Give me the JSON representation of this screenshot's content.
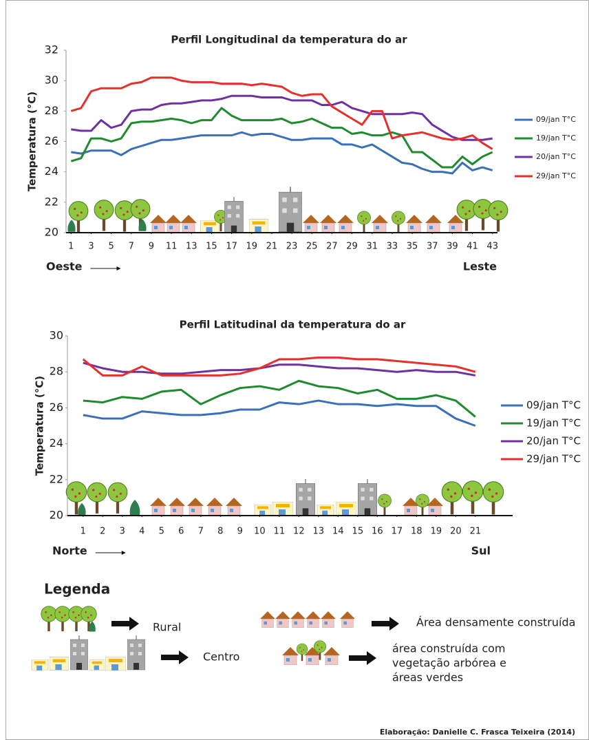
{
  "chart_data": [
    {
      "type": "line",
      "title": "Perfil Longitudinal da temperatura do ar",
      "y_label": "Temperatura (°C)",
      "left_label": "Oeste",
      "right_label": "Leste",
      "legend": "right",
      "x": [
        1,
        2,
        3,
        4,
        5,
        6,
        7,
        8,
        9,
        10,
        11,
        12,
        13,
        14,
        15,
        16,
        17,
        18,
        19,
        20,
        21,
        22,
        23,
        24,
        25,
        26,
        27,
        28,
        29,
        30,
        31,
        32,
        33,
        34,
        35,
        36,
        37,
        38,
        39,
        40,
        41,
        42,
        43
      ],
      "xlim": [
        0.5,
        43.5
      ],
      "xticks": [
        1,
        3,
        5,
        7,
        9,
        11,
        13,
        15,
        17,
        19,
        21,
        23,
        25,
        27,
        29,
        31,
        33,
        35,
        37,
        39,
        41,
        43
      ],
      "ylim": [
        20,
        32
      ],
      "yticks": [
        20,
        22,
        24,
        26,
        28,
        30,
        32
      ],
      "series": [
        {
          "name": "09/jan T°C",
          "color": "#3a6fba",
          "values": [
            25.3,
            25.2,
            25.4,
            25.4,
            25.4,
            25.1,
            25.5,
            25.7,
            25.9,
            26.1,
            26.1,
            26.2,
            26.3,
            26.4,
            26.4,
            26.4,
            26.4,
            26.6,
            26.4,
            26.5,
            26.5,
            26.3,
            26.1,
            26.1,
            26.2,
            26.2,
            26.2,
            25.8,
            25.8,
            25.6,
            25.8,
            25.4,
            25.0,
            24.6,
            24.5,
            24.2,
            24.0,
            24.0,
            23.9,
            24.6,
            24.1,
            24.3,
            24.1
          ]
        },
        {
          "name": "19/jan T°C",
          "color": "#1f8a2e",
          "values": [
            24.7,
            24.9,
            26.2,
            26.2,
            26.0,
            26.2,
            27.2,
            27.3,
            27.3,
            27.4,
            27.5,
            27.4,
            27.2,
            27.4,
            27.4,
            28.2,
            27.7,
            27.4,
            27.4,
            27.4,
            27.4,
            27.5,
            27.2,
            27.3,
            27.5,
            27.2,
            26.9,
            26.9,
            26.5,
            26.6,
            26.4,
            26.4,
            26.6,
            26.4,
            25.3,
            25.3,
            24.8,
            24.3,
            24.3,
            25.0,
            24.5,
            25.0,
            25.3
          ]
        },
        {
          "name": "20/jan T°C",
          "color": "#7030a0",
          "values": [
            26.8,
            26.7,
            26.7,
            27.4,
            26.9,
            27.1,
            28.0,
            28.1,
            28.1,
            28.4,
            28.5,
            28.5,
            28.6,
            28.7,
            28.7,
            28.8,
            29.0,
            29.0,
            29.0,
            28.9,
            28.9,
            28.9,
            28.7,
            28.7,
            28.7,
            28.4,
            28.4,
            28.6,
            28.2,
            28.0,
            27.8,
            27.8,
            27.8,
            27.8,
            27.9,
            27.8,
            27.1,
            26.7,
            26.3,
            26.1,
            26.1,
            26.1,
            26.2
          ]
        },
        {
          "name": "29/jan T°C",
          "color": "#e8302a",
          "values": [
            28.0,
            28.2,
            29.3,
            29.5,
            29.5,
            29.5,
            29.8,
            29.9,
            30.2,
            30.2,
            30.2,
            30.0,
            29.9,
            29.9,
            29.9,
            29.8,
            29.8,
            29.8,
            29.7,
            29.8,
            29.7,
            29.6,
            29.2,
            29.0,
            29.1,
            29.1,
            28.3,
            27.9,
            27.5,
            27.1,
            28.0,
            28.0,
            26.2,
            26.4,
            26.5,
            26.6,
            26.4,
            26.2,
            26.1,
            26.2,
            26.4,
            25.9,
            25.5
          ]
        }
      ]
    },
    {
      "type": "line",
      "title": "Perfil Latitudinal da temperatura do ar",
      "y_label": "Temperatura (°C)",
      "left_label": "Norte",
      "right_label": "Sul",
      "legend": "right",
      "x": [
        1,
        2,
        3,
        4,
        5,
        6,
        7,
        8,
        9,
        10,
        11,
        12,
        13,
        14,
        15,
        16,
        17,
        18,
        19,
        20,
        21
      ],
      "xlim": [
        0.2,
        22.9
      ],
      "xticks": [
        1,
        2,
        3,
        4,
        5,
        6,
        7,
        8,
        9,
        10,
        11,
        12,
        13,
        14,
        15,
        16,
        17,
        18,
        19,
        20,
        21
      ],
      "ylim": [
        20,
        30
      ],
      "yticks": [
        20,
        22,
        24,
        26,
        28,
        30
      ],
      "series": [
        {
          "name": "09/jan T°C",
          "color": "#3a6fba",
          "values": [
            25.6,
            25.4,
            25.4,
            25.8,
            25.7,
            25.6,
            25.6,
            25.7,
            25.9,
            25.9,
            26.3,
            26.2,
            26.4,
            26.2,
            26.2,
            26.1,
            26.2,
            26.1,
            26.1,
            25.4,
            25.0
          ]
        },
        {
          "name": "19/jan T°C",
          "color": "#1f8a2e",
          "values": [
            26.4,
            26.3,
            26.6,
            26.5,
            26.9,
            27.0,
            26.2,
            26.7,
            27.1,
            27.2,
            27.0,
            27.5,
            27.2,
            27.1,
            26.8,
            27.0,
            26.5,
            26.5,
            26.7,
            26.4,
            25.5
          ]
        },
        {
          "name": "20/jan T°C",
          "color": "#7030a0",
          "values": [
            28.5,
            28.2,
            28.0,
            28.0,
            27.9,
            27.9,
            28.0,
            28.1,
            28.1,
            28.2,
            28.4,
            28.4,
            28.3,
            28.2,
            28.2,
            28.1,
            28.0,
            28.1,
            28.0,
            28.0,
            27.8
          ]
        },
        {
          "name": "29/jan T°C",
          "color": "#e8302a",
          "values": [
            28.7,
            27.8,
            27.8,
            28.3,
            27.8,
            27.8,
            27.8,
            27.8,
            27.9,
            28.2,
            28.7,
            28.7,
            28.8,
            28.8,
            28.7,
            28.7,
            28.6,
            28.5,
            28.4,
            28.3,
            28.0
          ]
        }
      ]
    }
  ],
  "legend_section": {
    "title": "Legenda",
    "rural": "Rural",
    "dense": "Área densamente construída",
    "center": "Centro",
    "green_built": [
      "área construída com",
      "vegetação arbórea e",
      "áreas verdes"
    ]
  },
  "credit": "Elaboração: Danielle C. Frasca Teixeira (2014)"
}
